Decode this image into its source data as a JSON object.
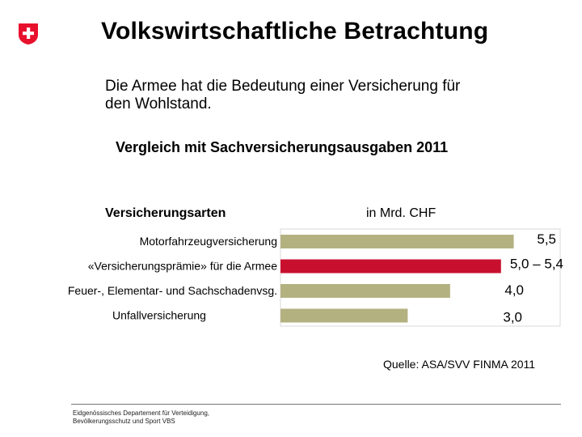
{
  "header": {
    "title": "Volkswirtschaftliche Betrachtung"
  },
  "intro": {
    "line1": "Die Armee hat die Bedeutung einer Versicherung für",
    "line2": "den Wohlstand."
  },
  "subtitle": "Vergleich mit Sachversicherungsausgaben 2011",
  "columns": {
    "left": "Versicherungsarten",
    "right": "in Mrd. CHF"
  },
  "source": "Quelle: ASA/SVV FINMA 2011",
  "footer": {
    "line1": "Eidgenössisches Departement für Verteidigung,",
    "line2": "Bevölkerungsschutz und Sport VBS"
  },
  "colors": {
    "bar_default": "#b3b180",
    "bar_highlight": "#c8102e",
    "logo_red": "#e8112d"
  },
  "chart_data": {
    "type": "bar",
    "orientation": "horizontal",
    "categories": [
      "Motorfahrzeugversicherung",
      "«Versicherungsprämie» für die Armee",
      "Feuer-, Elementar- und Sachschadenvsg.",
      "Unfallversicherung"
    ],
    "values": [
      5.5,
      5.2,
      4.0,
      3.0
    ],
    "value_labels": [
      "5,5",
      "5,0 – 5,4",
      "4,0",
      "3,0"
    ],
    "highlight_index": 1,
    "xlim": [
      0,
      6.5
    ]
  }
}
